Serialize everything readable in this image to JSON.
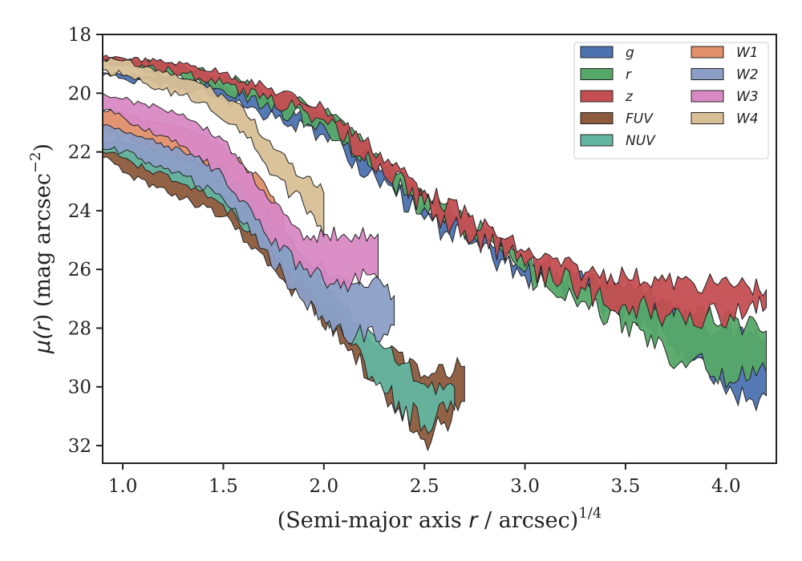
{
  "chart_data": {
    "type": "area",
    "xlabel": "(Semi-major axis r / arcsec)^1/4",
    "xlabel_parts": {
      "pre": "(Semi-major axis ",
      "var": "r",
      "mid": " / arcsec)",
      "sup": "1/4"
    },
    "ylabel": "μ(r) (mag arcsec^−2)",
    "ylabel_parts": {
      "mu": "μ(",
      "var": "r",
      "mid": ") (mag arcsec",
      "sup": "−2",
      "post": ")"
    },
    "xlim": [
      0.9,
      4.25
    ],
    "ylim": [
      32.6,
      18
    ],
    "y_inverted": true,
    "xticks": [
      1.0,
      1.5,
      2.0,
      2.5,
      3.0,
      3.5,
      4.0
    ],
    "xtick_labels": [
      "1.0",
      "1.5",
      "2.0",
      "2.5",
      "3.0",
      "3.5",
      "4.0"
    ],
    "yticks": [
      18,
      20,
      22,
      24,
      26,
      28,
      30,
      32
    ],
    "ytick_labels": [
      "18",
      "20",
      "22",
      "24",
      "26",
      "28",
      "30",
      "32"
    ],
    "grid": false,
    "legend_position": "top-right",
    "legend_columns": 2,
    "series": [
      {
        "name": "g",
        "color": "#4c72b0",
        "upper": [
          [
            0.9,
            19.3
          ],
          [
            1.0,
            19.4
          ],
          [
            1.3,
            19.5
          ],
          [
            1.5,
            19.8
          ],
          [
            2.0,
            20.9
          ],
          [
            2.5,
            23.7
          ],
          [
            3.0,
            25.9
          ],
          [
            3.3,
            26.4
          ],
          [
            3.5,
            26.9
          ],
          [
            3.7,
            27.4
          ],
          [
            3.9,
            28.0
          ],
          [
            4.1,
            28.3
          ],
          [
            4.2,
            28.5
          ]
        ],
        "lower": [
          [
            4.2,
            30.3
          ],
          [
            4.1,
            30.5
          ],
          [
            3.9,
            29.2
          ],
          [
            3.7,
            28.2
          ],
          [
            3.5,
            27.4
          ],
          [
            3.3,
            26.8
          ],
          [
            3.0,
            26.2
          ],
          [
            2.5,
            24.3
          ],
          [
            2.0,
            21.4
          ],
          [
            1.5,
            20.2
          ],
          [
            1.3,
            19.8
          ],
          [
            1.0,
            19.5
          ],
          [
            0.9,
            19.4
          ]
        ]
      },
      {
        "name": "r",
        "color": "#55a868",
        "upper": [
          [
            0.9,
            18.8
          ],
          [
            1.0,
            18.85
          ],
          [
            1.3,
            19.1
          ],
          [
            1.5,
            19.4
          ],
          [
            2.0,
            20.6
          ],
          [
            2.5,
            23.4
          ],
          [
            3.0,
            25.6
          ],
          [
            3.3,
            26.3
          ],
          [
            3.5,
            26.6
          ],
          [
            3.7,
            27.2
          ],
          [
            3.9,
            27.6
          ],
          [
            4.1,
            27.9
          ],
          [
            4.2,
            28.1
          ]
        ],
        "lower": [
          [
            4.2,
            29.5
          ],
          [
            4.1,
            29.8
          ],
          [
            3.9,
            29.4
          ],
          [
            3.7,
            28.8
          ],
          [
            3.5,
            27.8
          ],
          [
            3.3,
            27.1
          ],
          [
            3.0,
            26.1
          ],
          [
            2.5,
            23.9
          ],
          [
            2.0,
            21.1
          ],
          [
            1.5,
            19.9
          ],
          [
            1.3,
            19.5
          ],
          [
            1.0,
            19.1
          ],
          [
            0.9,
            19.0
          ]
        ]
      },
      {
        "name": "z",
        "color": "#c44e52",
        "upper": [
          [
            0.9,
            18.75
          ],
          [
            1.0,
            18.8
          ],
          [
            1.3,
            19.0
          ],
          [
            1.5,
            19.3
          ],
          [
            2.0,
            20.5
          ],
          [
            2.5,
            23.3
          ],
          [
            3.0,
            25.4
          ],
          [
            3.3,
            26.1
          ],
          [
            3.5,
            26.2
          ],
          [
            3.7,
            26.4
          ],
          [
            3.9,
            26.5
          ],
          [
            4.1,
            26.5
          ],
          [
            4.2,
            26.7
          ]
        ],
        "lower": [
          [
            4.2,
            27.3
          ],
          [
            4.1,
            27.5
          ],
          [
            3.9,
            27.6
          ],
          [
            3.7,
            27.6
          ],
          [
            3.5,
            27.2
          ],
          [
            3.3,
            26.7
          ],
          [
            3.0,
            25.9
          ],
          [
            2.5,
            23.8
          ],
          [
            2.0,
            20.9
          ],
          [
            1.5,
            19.7
          ],
          [
            1.3,
            19.3
          ],
          [
            1.0,
            19.0
          ],
          [
            0.9,
            18.95
          ]
        ]
      },
      {
        "name": "FUV",
        "color": "#8c5a3c",
        "upper": [
          [
            0.9,
            21.8
          ],
          [
            1.0,
            22.0
          ],
          [
            1.3,
            22.6
          ],
          [
            1.5,
            23.3
          ],
          [
            1.7,
            24.4
          ],
          [
            1.9,
            26.2
          ],
          [
            2.1,
            27.6
          ],
          [
            2.3,
            28.7
          ],
          [
            2.5,
            29.6
          ],
          [
            2.7,
            29.3
          ]
        ],
        "lower": [
          [
            2.7,
            30.5
          ],
          [
            2.6,
            31.2
          ],
          [
            2.5,
            31.8
          ],
          [
            2.3,
            30.2
          ],
          [
            2.1,
            28.5
          ],
          [
            1.9,
            27.1
          ],
          [
            1.7,
            25.5
          ],
          [
            1.5,
            24.2
          ],
          [
            1.3,
            23.6
          ],
          [
            1.0,
            22.7
          ],
          [
            0.9,
            22.2
          ]
        ]
      },
      {
        "name": "NUV",
        "color": "#64b5a0",
        "upper": [
          [
            0.9,
            21.6
          ],
          [
            1.0,
            21.7
          ],
          [
            1.3,
            22.2
          ],
          [
            1.5,
            22.8
          ],
          [
            1.7,
            23.9
          ],
          [
            1.9,
            25.8
          ],
          [
            2.1,
            27.3
          ],
          [
            2.3,
            28.7
          ],
          [
            2.5,
            29.9
          ],
          [
            2.65,
            30.0
          ]
        ],
        "lower": [
          [
            2.65,
            30.8
          ],
          [
            2.5,
            31.3
          ],
          [
            2.3,
            30.2
          ],
          [
            2.1,
            28.3
          ],
          [
            1.9,
            26.7
          ],
          [
            1.7,
            25.1
          ],
          [
            1.5,
            23.8
          ],
          [
            1.3,
            23.1
          ],
          [
            1.0,
            22.2
          ],
          [
            0.9,
            22.0
          ]
        ]
      },
      {
        "name": "W1",
        "color": "#e28f6b",
        "upper": [
          [
            0.9,
            20.6
          ],
          [
            1.0,
            20.7
          ],
          [
            1.3,
            21.2
          ],
          [
            1.5,
            21.8
          ],
          [
            1.7,
            23.0
          ],
          [
            1.8,
            24.3
          ]
        ],
        "lower": [
          [
            1.8,
            25.4
          ],
          [
            1.7,
            24.2
          ],
          [
            1.5,
            22.8
          ],
          [
            1.3,
            22.2
          ],
          [
            1.0,
            21.5
          ],
          [
            0.9,
            21.2
          ]
        ]
      },
      {
        "name": "W2",
        "color": "#8c9ec6",
        "upper": [
          [
            0.9,
            21.1
          ],
          [
            1.0,
            21.3
          ],
          [
            1.3,
            22.0
          ],
          [
            1.5,
            22.6
          ],
          [
            1.7,
            23.9
          ],
          [
            1.9,
            25.6
          ],
          [
            2.1,
            26.3
          ],
          [
            2.3,
            26.6
          ],
          [
            2.35,
            26.9
          ]
        ],
        "lower": [
          [
            2.35,
            27.9
          ],
          [
            2.3,
            28.2
          ],
          [
            2.1,
            28.3
          ],
          [
            1.9,
            27.1
          ],
          [
            1.7,
            25.3
          ],
          [
            1.5,
            23.6
          ],
          [
            1.3,
            22.8
          ],
          [
            1.0,
            22.0
          ],
          [
            0.9,
            21.9
          ]
        ]
      },
      {
        "name": "W3",
        "color": "#d989c4",
        "upper": [
          [
            0.9,
            20.0
          ],
          [
            1.0,
            20.2
          ],
          [
            1.3,
            20.7
          ],
          [
            1.5,
            21.6
          ],
          [
            1.7,
            23.3
          ],
          [
            1.9,
            25.0
          ],
          [
            2.0,
            24.8
          ],
          [
            2.1,
            24.8
          ],
          [
            2.27,
            24.8
          ]
        ],
        "lower": [
          [
            2.27,
            26.3
          ],
          [
            2.1,
            26.4
          ],
          [
            2.0,
            26.4
          ],
          [
            1.9,
            26.0
          ],
          [
            1.7,
            24.7
          ],
          [
            1.5,
            22.8
          ],
          [
            1.3,
            21.8
          ],
          [
            1.0,
            20.8
          ],
          [
            0.9,
            20.6
          ]
        ]
      },
      {
        "name": "W4",
        "color": "#d8bf96",
        "upper": [
          [
            0.9,
            18.85
          ],
          [
            1.0,
            18.9
          ],
          [
            1.2,
            19.3
          ],
          [
            1.4,
            19.7
          ],
          [
            1.6,
            20.5
          ],
          [
            1.75,
            21.9
          ],
          [
            1.9,
            22.9
          ],
          [
            2.0,
            23.4
          ]
        ],
        "lower": [
          [
            2.0,
            24.9
          ],
          [
            1.9,
            23.8
          ],
          [
            1.75,
            22.8
          ],
          [
            1.6,
            21.3
          ],
          [
            1.4,
            20.3
          ],
          [
            1.2,
            19.9
          ],
          [
            1.0,
            19.4
          ],
          [
            0.9,
            19.2
          ]
        ]
      }
    ]
  }
}
